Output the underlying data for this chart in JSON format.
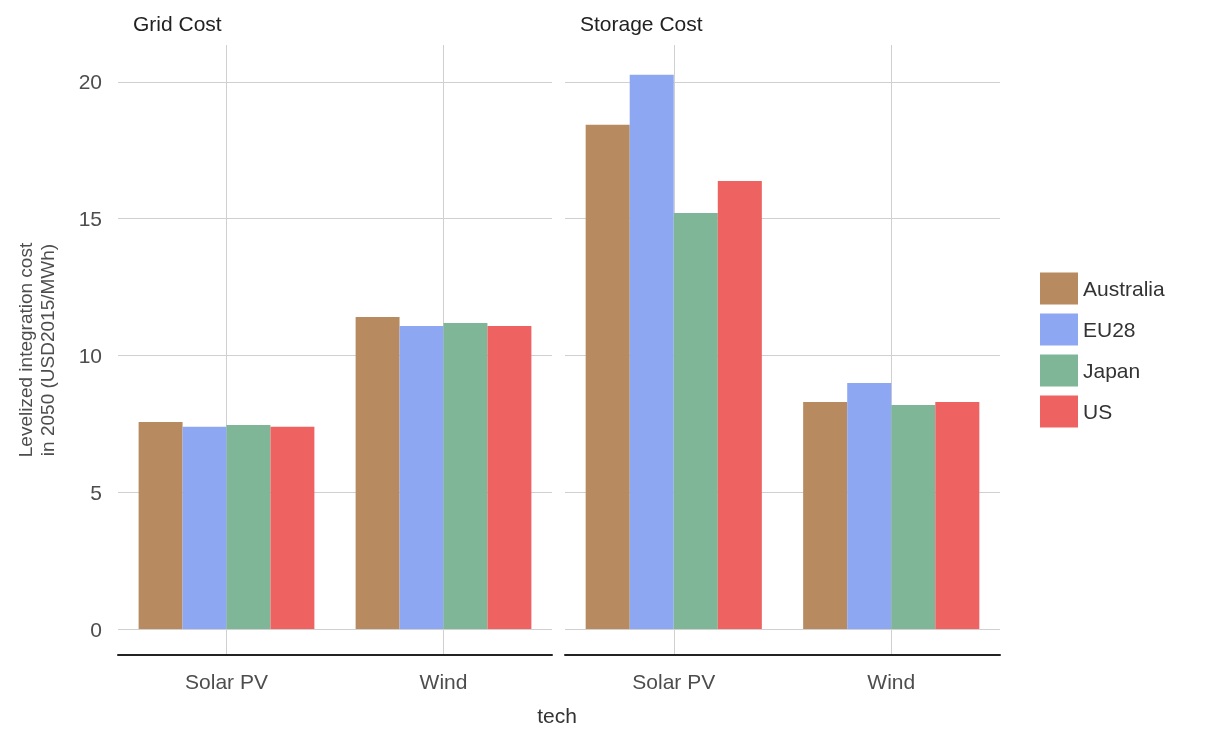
{
  "chart_data": [
    {
      "type": "bar",
      "title": "Grid Cost",
      "xlabel": "tech",
      "ylabel": "Levelized integration cost\nin 2050 (USD2015/MWh)",
      "categories": [
        "Solar PV",
        "Wind"
      ],
      "series": [
        {
          "color": "#b78a5f",
          "values": [
            7.57,
            11.41
          ]
        },
        {
          "color": "#8ea7f2",
          "values": [
            7.39,
            11.08
          ]
        },
        {
          "color": "#7fb697",
          "values": [
            7.46,
            11.19
          ]
        },
        {
          "color": "#ef6262",
          "values": [
            7.39,
            11.08
          ]
        }
      ],
      "ylim": [
        -0.95,
        21.35
      ],
      "yticks": [
        0,
        5,
        10,
        15,
        20
      ],
      "grid": true
    },
    {
      "type": "bar",
      "title": "Storage Cost",
      "categories": [
        "Solar PV",
        "Wind"
      ],
      "series": [
        {
          "name": "Australia",
          "color": "#b78a5f",
          "values": [
            18.43,
            8.3
          ]
        },
        {
          "name": "EU28",
          "color": "#8ea7f2",
          "values": [
            20.26,
            8.99
          ]
        },
        {
          "name": "Japan",
          "color": "#7fb697",
          "values": [
            15.21,
            8.19
          ]
        },
        {
          "name": "US",
          "color": "#ef6262",
          "values": [
            16.38,
            8.3
          ]
        }
      ],
      "ylim": [
        -0.95,
        21.35
      ],
      "yticks": [
        0,
        5,
        10,
        15,
        20
      ],
      "grid": true,
      "tick_labels": "x",
      "legend": "right"
    }
  ]
}
